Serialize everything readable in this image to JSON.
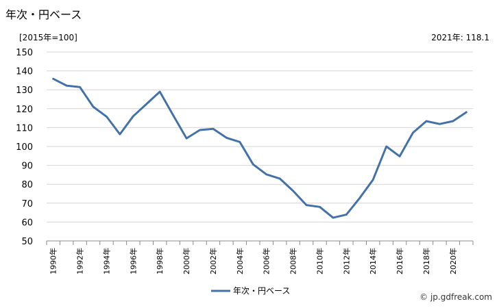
{
  "page": {
    "title": "年次・円ベース",
    "unit_label": "[2015年=100]",
    "latest_label": "2021年: 118.1",
    "credit": "© jp.gdfreak.com"
  },
  "chart_data": {
    "type": "line",
    "x": [
      1990,
      1991,
      1992,
      1993,
      1994,
      1995,
      1996,
      1997,
      1998,
      1999,
      2000,
      2001,
      2002,
      2003,
      2004,
      2005,
      2006,
      2007,
      2008,
      2009,
      2010,
      2011,
      2012,
      2013,
      2014,
      2015,
      2016,
      2017,
      2018,
      2019,
      2020,
      2021
    ],
    "x_tick_labels": [
      "1990年",
      "1992年",
      "1994年",
      "1996年",
      "1998年",
      "2000年",
      "2002年",
      "2004年",
      "2006年",
      "2008年",
      "2010年",
      "2012年",
      "2014年",
      "2016年",
      "2018年",
      "2020年"
    ],
    "series": [
      {
        "name": "年次・円ベース",
        "color": "#4472a8",
        "values": [
          135.8,
          132.2,
          131.4,
          121.0,
          115.8,
          106.5,
          116.0,
          122.5,
          129.0,
          116.5,
          104.3,
          108.7,
          109.3,
          104.6,
          102.4,
          90.5,
          85.2,
          83.0,
          76.5,
          69.0,
          68.0,
          62.3,
          63.9,
          72.7,
          82.4,
          100.0,
          94.8,
          107.3,
          113.4,
          111.9,
          113.4,
          118.1
        ]
      }
    ],
    "ylim": [
      50,
      150
    ],
    "y_ticks": [
      50,
      60,
      70,
      80,
      90,
      100,
      110,
      120,
      130,
      140,
      150
    ],
    "grid": true,
    "legend": "bottom-center"
  }
}
